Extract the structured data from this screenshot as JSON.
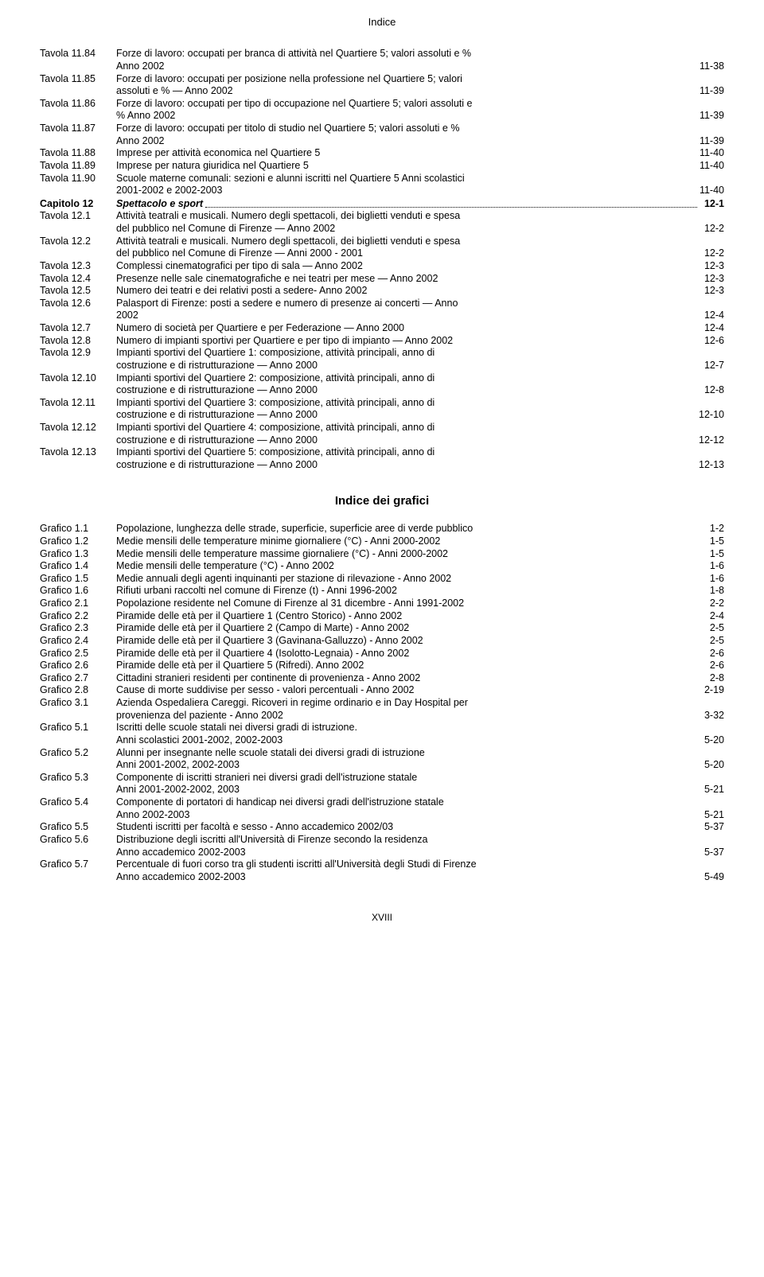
{
  "header": {
    "title": "Indice"
  },
  "footer": {
    "page": "XVIII"
  },
  "section2_title": "Indice dei grafici",
  "entries1": [
    {
      "label": "Tavola 11.84",
      "lines": [
        "Forze di lavoro: occupati per branca di attività nel Quartiere 5; valori assoluti e %",
        "Anno 2002"
      ],
      "page": "11-38"
    },
    {
      "label": "Tavola 11.85",
      "lines": [
        "Forze di lavoro: occupati per posizione nella professione nel Quartiere 5; valori",
        "assoluti e % — Anno 2002"
      ],
      "page": "11-39"
    },
    {
      "label": "Tavola 11.86",
      "lines": [
        "Forze di lavoro: occupati per tipo di occupazione nel Quartiere 5; valori assoluti e",
        "% Anno 2002"
      ],
      "page": "11-39"
    },
    {
      "label": "Tavola 11.87",
      "lines": [
        "Forze di lavoro: occupati per titolo di studio nel Quartiere 5; valori assoluti e %",
        "Anno 2002"
      ],
      "page": "11-39"
    },
    {
      "label": "Tavola 11.88",
      "lines": [
        "Imprese per attività economica nel Quartiere 5"
      ],
      "page": "11-40"
    },
    {
      "label": "Tavola 11.89",
      "lines": [
        "Imprese per natura giuridica nel Quartiere 5"
      ],
      "page": "11-40"
    },
    {
      "label": "Tavola 11.90",
      "lines": [
        "Scuole materne comunali: sezioni e alunni iscritti nel Quartiere 5   Anni scolastici",
        "2001-2002 e 2002-2003"
      ],
      "page": "11-40"
    },
    {
      "label": "Capitolo 12",
      "lines": [
        "Spettacolo e sport"
      ],
      "page": "12-1",
      "chapter": true,
      "dots": true
    },
    {
      "label": "Tavola 12.1",
      "lines": [
        "Attività teatrali e musicali. Numero degli spettacoli, dei biglietti venduti e spesa",
        "del pubblico nel Comune di Firenze — Anno 2002"
      ],
      "page": "12-2"
    },
    {
      "label": "Tavola 12.2",
      "lines": [
        "Attività teatrali e musicali. Numero degli spettacoli, dei biglietti venduti e spesa",
        "del pubblico nel Comune di Firenze — Anni 2000 - 2001"
      ],
      "page": "12-2"
    },
    {
      "label": "Tavola 12.3",
      "lines": [
        "Complessi cinematografici per tipo di sala — Anno 2002"
      ],
      "page": "12-3"
    },
    {
      "label": "Tavola 12.4",
      "lines": [
        "Presenze nelle sale cinematografiche e nei teatri per mese — Anno 2002"
      ],
      "page": "12-3"
    },
    {
      "label": "Tavola 12.5",
      "lines": [
        "Numero dei teatri e dei relativi posti a sedere- Anno 2002"
      ],
      "page": "12-3"
    },
    {
      "label": "Tavola 12.6",
      "lines": [
        "Palasport di Firenze: posti a sedere e numero di presenze ai concerti — Anno",
        "2002"
      ],
      "page": "12-4"
    },
    {
      "label": "Tavola 12.7",
      "lines": [
        "Numero di società per Quartiere e per Federazione — Anno 2000"
      ],
      "page": "12-4"
    },
    {
      "label": "Tavola 12.8",
      "lines": [
        "Numero di impianti sportivi per Quartiere e per tipo di impianto — Anno 2002"
      ],
      "page": "12-6"
    },
    {
      "label": "Tavola 12.9",
      "lines": [
        "Impianti sportivi del Quartiere 1: composizione, attività principali, anno di",
        "costruzione e di ristrutturazione — Anno 2000"
      ],
      "page": "12-7"
    },
    {
      "label": "Tavola 12.10",
      "lines": [
        "Impianti sportivi del Quartiere 2: composizione, attività principali, anno di",
        "costruzione e di ristrutturazione — Anno 2000"
      ],
      "page": "12-8"
    },
    {
      "label": "Tavola 12.11",
      "lines": [
        "Impianti sportivi del Quartiere 3: composizione, attività principali, anno di",
        "costruzione e di ristrutturazione — Anno 2000"
      ],
      "page": "12-10"
    },
    {
      "label": "Tavola 12.12",
      "lines": [
        "Impianti sportivi del Quartiere 4: composizione, attività principali, anno di",
        "costruzione e di ristrutturazione — Anno 2000"
      ],
      "page": "12-12"
    },
    {
      "label": "Tavola 12.13",
      "lines": [
        "Impianti sportivi del Quartiere 5: composizione, attività principali, anno di",
        "costruzione e di ristrutturazione — Anno 2000"
      ],
      "page": "12-13"
    }
  ],
  "entries2": [
    {
      "label": "Grafico 1.1",
      "lines": [
        "Popolazione, lunghezza delle strade, superficie, superficie aree di verde pubblico"
      ],
      "page": "1-2"
    },
    {
      "label": "Grafico 1.2",
      "lines": [
        "Medie mensili delle temperature minime giornaliere (°C) - Anni 2000-2002"
      ],
      "page": "1-5"
    },
    {
      "label": "Grafico 1.3",
      "lines": [
        "Medie mensili delle temperature massime giornaliere (°C) - Anni 2000-2002"
      ],
      "page": "1-5"
    },
    {
      "label": "Grafico 1.4",
      "lines": [
        "Medie mensili delle temperature (°C) - Anno 2002"
      ],
      "page": "1-6"
    },
    {
      "label": "Grafico 1.5",
      "lines": [
        "Medie annuali degli agenti inquinanti per stazione di rilevazione - Anno 2002"
      ],
      "page": "1-6"
    },
    {
      "label": "Grafico 1.6",
      "lines": [
        "Rifiuti urbani raccolti nel comune di Firenze (t) - Anni 1996-2002"
      ],
      "page": "1-8"
    },
    {
      "label": "Grafico 2.1",
      "lines": [
        "Popolazione residente nel Comune di Firenze  al 31 dicembre - Anni  1991-2002"
      ],
      "page": "2-2"
    },
    {
      "label": "Grafico 2.2",
      "lines": [
        "Piramide delle età per il Quartiere 1 (Centro Storico) - Anno 2002"
      ],
      "page": "2-4"
    },
    {
      "label": "Grafico 2.3",
      "lines": [
        "Piramide delle età per il Quartiere 2 (Campo di Marte) - Anno 2002"
      ],
      "page": "2-5"
    },
    {
      "label": "Grafico 2.4",
      "lines": [
        "Piramide delle età per il Quartiere 3 (Gavinana-Galluzzo) - Anno 2002"
      ],
      "page": "2-5"
    },
    {
      "label": "Grafico 2.5",
      "lines": [
        "Piramide delle età per il Quartiere 4 (Isolotto-Legnaia) - Anno 2002"
      ],
      "page": "2-6"
    },
    {
      "label": "Grafico 2.6",
      "lines": [
        "Piramide delle età per il Quartiere 5 (Rifredi). Anno 2002"
      ],
      "page": "2-6"
    },
    {
      "label": "Grafico 2.7",
      "lines": [
        "Cittadini stranieri residenti per continente di provenienza - Anno 2002"
      ],
      "page": "2-8"
    },
    {
      "label": "Grafico 2.8",
      "lines": [
        "Cause di morte suddivise per sesso - valori percentuali - Anno 2002"
      ],
      "page": "2-19"
    },
    {
      "label": "Grafico 3.1",
      "lines": [
        "Azienda Ospedaliera Careggi. Ricoveri in regime ordinario e in Day Hospital per",
        "provenienza del paziente - Anno 2002"
      ],
      "page": "3-32"
    },
    {
      "label": "Grafico 5.1",
      "lines": [
        "Iscritti delle scuole statali nei diversi gradi di istruzione.",
        "Anni scolastici 2001-2002, 2002-2003"
      ],
      "page": "5-20"
    },
    {
      "label": "Grafico 5.2",
      "lines": [
        "Alunni per insegnante nelle scuole statali dei diversi gradi di istruzione",
        "Anni 2001-2002, 2002-2003"
      ],
      "page": "5-20"
    },
    {
      "label": "Grafico 5.3",
      "lines": [
        "Componente di iscritti stranieri nei diversi gradi dell'istruzione statale",
        "Anni 2001-2002-2002, 2003"
      ],
      "page": "5-21"
    },
    {
      "label": "Grafico 5.4",
      "lines": [
        "Componente di portatori di handicap nei diversi gradi dell'istruzione statale",
        "Anno 2002-2003"
      ],
      "page": "5-21"
    },
    {
      "label": "Grafico 5.5",
      "lines": [
        "Studenti iscritti per facoltà e sesso - Anno accademico 2002/03"
      ],
      "page": "5-37"
    },
    {
      "label": "Grafico 5.6",
      "lines": [
        "Distribuzione degli iscritti all'Università di Firenze secondo la residenza",
        "Anno accademico 2002-2003"
      ],
      "page": "5-37"
    },
    {
      "label": "Grafico 5.7",
      "lines": [
        "Percentuale di fuori corso tra gli studenti iscritti all'Università degli Studi di Firenze",
        "Anno accademico 2002-2003"
      ],
      "page": "5-49"
    }
  ]
}
